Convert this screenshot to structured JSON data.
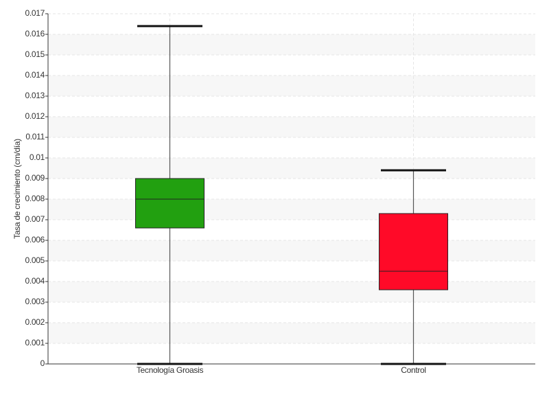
{
  "chart_data": {
    "type": "box",
    "ylabel": "Tasa de crecimiento (cm/día)",
    "categories": [
      "Tecnología Groasis",
      "Control"
    ],
    "colors": [
      "#22a010",
      "#ff0a28"
    ],
    "boxes": [
      {
        "min": 0,
        "q1": 0.0066,
        "median": 0.008,
        "q3": 0.009,
        "max": 0.0164
      },
      {
        "min": 0,
        "q1": 0.0036,
        "median": 0.0045,
        "q3": 0.0073,
        "max": 0.0094
      }
    ],
    "ylim": [
      0,
      0.017
    ],
    "yticks": [
      0,
      0.001,
      0.002,
      0.003,
      0.004,
      0.005,
      0.006,
      0.007,
      0.008,
      0.009,
      0.01,
      0.011,
      0.012,
      0.013,
      0.014,
      0.015,
      0.016,
      0.017
    ],
    "grid": true
  }
}
